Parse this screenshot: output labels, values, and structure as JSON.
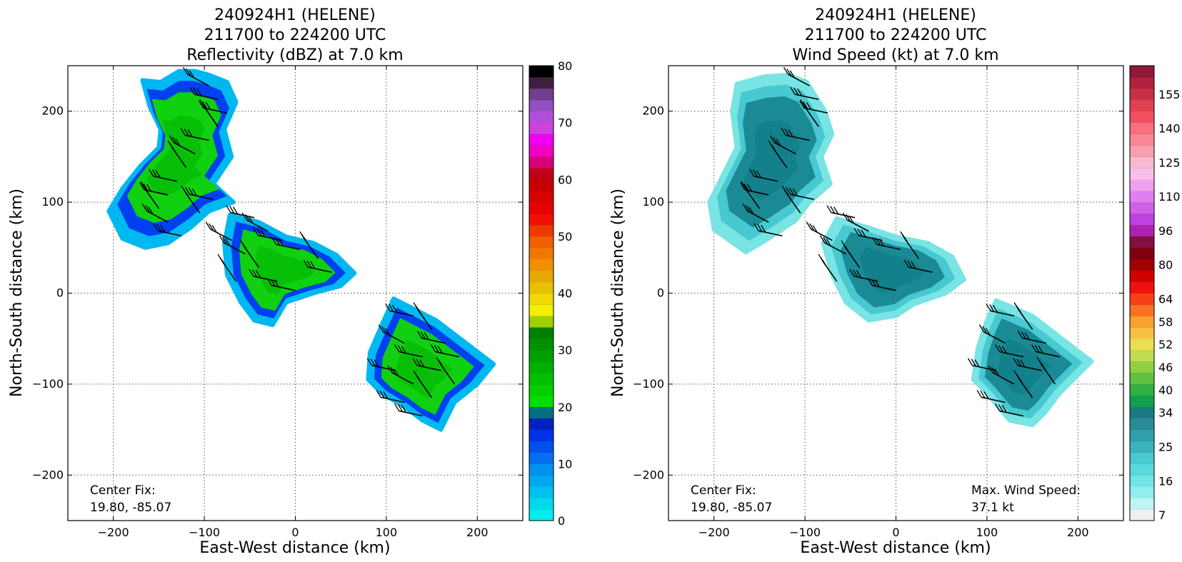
{
  "chart_data": [
    {
      "type": "heatmap",
      "title_lines": [
        "240924H1 (HELENE)",
        "211700 to 224200 UTC",
        "Reflectivity (dBZ) at 7.0 km"
      ],
      "xlabel": "East-West distance (km)",
      "ylabel": "North-South distance (km)",
      "xlim": [
        -250,
        250
      ],
      "ylim": [
        -250,
        250
      ],
      "xticks": [
        -200,
        -100,
        0,
        100,
        200
      ],
      "yticks": [
        -200,
        -100,
        0,
        100,
        200
      ],
      "xtick_labels": [
        "−200",
        "−100",
        "0",
        "100",
        "200"
      ],
      "ytick_labels": [
        "−200",
        "−100",
        "0",
        "100",
        "200"
      ],
      "grid": true,
      "colorbar": {
        "ticks": [
          0,
          10,
          20,
          30,
          40,
          50,
          60,
          70,
          80
        ],
        "tick_labels": [
          "0",
          "10",
          "20",
          "30",
          "40",
          "50",
          "60",
          "70",
          "80"
        ],
        "colors": [
          "#00eeee",
          "#00d8ee",
          "#00c0f0",
          "#00a8f0",
          "#0090f0",
          "#0070f0",
          "#0050f0",
          "#0030e8",
          "#0020c0",
          "#007080",
          "#00e000",
          "#00d000",
          "#00c000",
          "#00b000",
          "#00a000",
          "#009000",
          "#008000",
          "#a0d000",
          "#f0f000",
          "#f0d800",
          "#e8c000",
          "#e8a800",
          "#f09000",
          "#f07800",
          "#f06000",
          "#f03800",
          "#f01000",
          "#e80000",
          "#d80000",
          "#c80000",
          "#c00018",
          "#d80078",
          "#f000c0",
          "#f000f0",
          "#d040e0",
          "#b050d8",
          "#9050c0",
          "#704090",
          "#402040",
          "#000000"
        ]
      },
      "regions": [
        {
          "name": "north band",
          "points": [
            [
              -168,
              234
            ],
            [
              -148,
              232
            ],
            [
              -128,
              244
            ],
            [
              -110,
              244
            ],
            [
              -95,
              240
            ],
            [
              -75,
              232
            ],
            [
              -65,
              210
            ],
            [
              -78,
              180
            ],
            [
              -70,
              150
            ],
            [
              -90,
              120
            ],
            [
              -68,
              100
            ],
            [
              -95,
              90
            ],
            [
              -115,
              72
            ],
            [
              -140,
              55
            ],
            [
              -165,
              50
            ],
            [
              -190,
              60
            ],
            [
              -205,
              90
            ],
            [
              -190,
              115
            ],
            [
              -170,
              140
            ],
            [
              -150,
              160
            ],
            [
              -148,
              180
            ],
            [
              -160,
              205
            ]
          ],
          "value": 22
        },
        {
          "name": "center band",
          "points": [
            [
              -72,
              86
            ],
            [
              -40,
              78
            ],
            [
              -10,
              62
            ],
            [
              20,
              55
            ],
            [
              45,
              42
            ],
            [
              65,
              22
            ],
            [
              50,
              8
            ],
            [
              20,
              0
            ],
            [
              -10,
              -10
            ],
            [
              -25,
              -35
            ],
            [
              -45,
              -30
            ],
            [
              -60,
              -10
            ],
            [
              -75,
              20
            ],
            [
              -78,
              55
            ]
          ],
          "value": 21
        },
        {
          "name": "south band",
          "points": [
            [
              108,
              -6
            ],
            [
              155,
              -30
            ],
            [
              218,
              -78
            ],
            [
              200,
              -100
            ],
            [
              175,
              -120
            ],
            [
              160,
              -150
            ],
            [
              140,
              -140
            ],
            [
              120,
              -125
            ],
            [
              95,
              -110
            ],
            [
              80,
              -95
            ],
            [
              82,
              -65
            ],
            [
              95,
              -35
            ]
          ],
          "value": 22
        }
      ],
      "center_fix_label": "Center Fix:",
      "center_fix_value": "19.80, -85.07"
    },
    {
      "type": "heatmap",
      "title_lines": [
        "240924H1 (HELENE)",
        "211700 to 224200 UTC",
        "Wind Speed (kt) at 7.0 km"
      ],
      "xlabel": "East-West distance (km)",
      "ylabel": "North-South distance (km)",
      "xlim": [
        -250,
        250
      ],
      "ylim": [
        -250,
        250
      ],
      "xticks": [
        -200,
        -100,
        0,
        100,
        200
      ],
      "yticks": [
        -200,
        -100,
        0,
        100,
        200
      ],
      "xtick_labels": [
        "−200",
        "−100",
        "0",
        "100",
        "200"
      ],
      "ytick_labels": [
        "−200",
        "−100",
        "0",
        "100",
        "200"
      ],
      "grid": true,
      "colorbar": {
        "tick_labels": [
          "7",
          "16",
          "25",
          "34",
          "40",
          "46",
          "52",
          "58",
          "64",
          "80",
          "96",
          "110",
          "125",
          "140",
          "155"
        ],
        "tick_index": [
          0,
          3,
          6,
          9,
          11,
          13,
          15,
          17,
          19,
          22,
          25,
          28,
          31,
          34,
          37
        ],
        "colors": [
          "#f0f0f0",
          "#c0f4f4",
          "#90eeee",
          "#70e6e6",
          "#58d8dc",
          "#48c8d0",
          "#38b4bc",
          "#30a0aa",
          "#288c98",
          "#1a7a84",
          "#10a050",
          "#30b040",
          "#60c040",
          "#90d040",
          "#c0dc50",
          "#e8e050",
          "#f8c040",
          "#f8a030",
          "#f87020",
          "#f84018",
          "#f01010",
          "#d00000",
          "#a00000",
          "#800010",
          "#801040",
          "#b020b0",
          "#c040e0",
          "#d060e8",
          "#e080f0",
          "#f0a0f0",
          "#f8c0e8",
          "#f8b8d0",
          "#f8a0b0",
          "#f88898",
          "#f87080",
          "#f05060",
          "#e04050",
          "#c83048",
          "#b02040",
          "#901838"
        ]
      },
      "regions": [
        {
          "name": "north band",
          "points": [
            [
              -175,
              230
            ],
            [
              -145,
              238
            ],
            [
              -118,
              240
            ],
            [
              -98,
              232
            ],
            [
              -78,
              200
            ],
            [
              -70,
              175
            ],
            [
              -82,
              150
            ],
            [
              -72,
              120
            ],
            [
              -95,
              100
            ],
            [
              -110,
              80
            ],
            [
              -140,
              60
            ],
            [
              -165,
              45
            ],
            [
              -200,
              70
            ],
            [
              -205,
              100
            ],
            [
              -190,
              130
            ],
            [
              -175,
              160
            ],
            [
              -180,
              200
            ]
          ],
          "value": 22
        },
        {
          "name": "center band",
          "points": [
            [
              -65,
              82
            ],
            [
              -30,
              72
            ],
            [
              0,
              62
            ],
            [
              35,
              55
            ],
            [
              62,
              40
            ],
            [
              75,
              15
            ],
            [
              55,
              0
            ],
            [
              20,
              -12
            ],
            [
              0,
              -25
            ],
            [
              -30,
              -30
            ],
            [
              -55,
              -10
            ],
            [
              -70,
              20
            ],
            [
              -80,
              55
            ]
          ],
          "value": 18
        },
        {
          "name": "south band",
          "points": [
            [
              110,
              -8
            ],
            [
              150,
              -25
            ],
            [
              215,
              -75
            ],
            [
              180,
              -110
            ],
            [
              165,
              -130
            ],
            [
              150,
              -145
            ],
            [
              125,
              -140
            ],
            [
              100,
              -110
            ],
            [
              85,
              -95
            ],
            [
              90,
              -60
            ],
            [
              100,
              -30
            ]
          ],
          "value": 22
        }
      ],
      "center_fix_label": "Center Fix:",
      "center_fix_value": "19.80, -85.07",
      "max_wind_label": "Max. Wind Speed:",
      "max_wind_value": "37.1 kt"
    }
  ]
}
